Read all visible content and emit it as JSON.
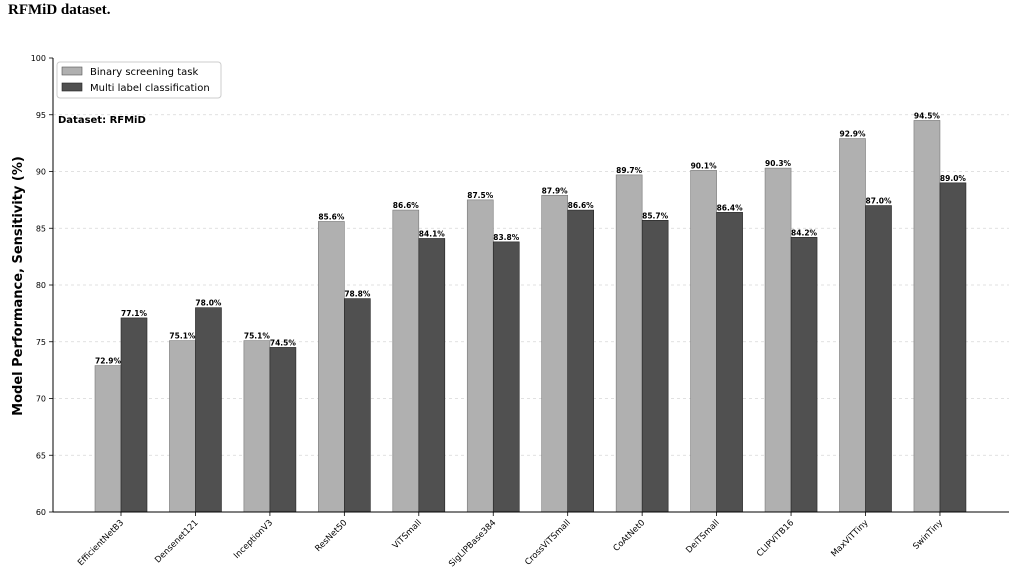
{
  "caption": "RFMiD dataset.",
  "chart_data": {
    "type": "bar",
    "title": "",
    "xlabel": "",
    "ylabel": "Model Performance, Sensitivity (%)",
    "ylim": [
      60,
      100
    ],
    "yticks": [
      60,
      65,
      70,
      75,
      80,
      85,
      90,
      95,
      100
    ],
    "grid": "horizontal dashed",
    "legend_position": "top-left",
    "annotation": "Dataset: RFMiD",
    "categories": [
      "EfficientNetB3",
      "Densenet121",
      "InceptionV3",
      "ResNet50",
      "ViTSmall",
      "SigLIPBase384",
      "CrossViTSmall",
      "CoAtNet0",
      "DeiTSmall",
      "CLIPViTB16",
      "MaxViTTiny",
      "SwinTiny"
    ],
    "series": [
      {
        "name": "Binary screening task",
        "color": "#b0b0b0",
        "values": [
          72.9,
          75.1,
          75.1,
          85.6,
          86.6,
          87.5,
          87.9,
          89.7,
          90.1,
          90.3,
          92.9,
          94.5
        ]
      },
      {
        "name": "Multi label classification",
        "color": "#505050",
        "values": [
          77.1,
          78.0,
          74.5,
          78.8,
          84.1,
          83.8,
          86.6,
          85.7,
          86.4,
          84.2,
          87.0,
          89.0
        ]
      }
    ]
  }
}
